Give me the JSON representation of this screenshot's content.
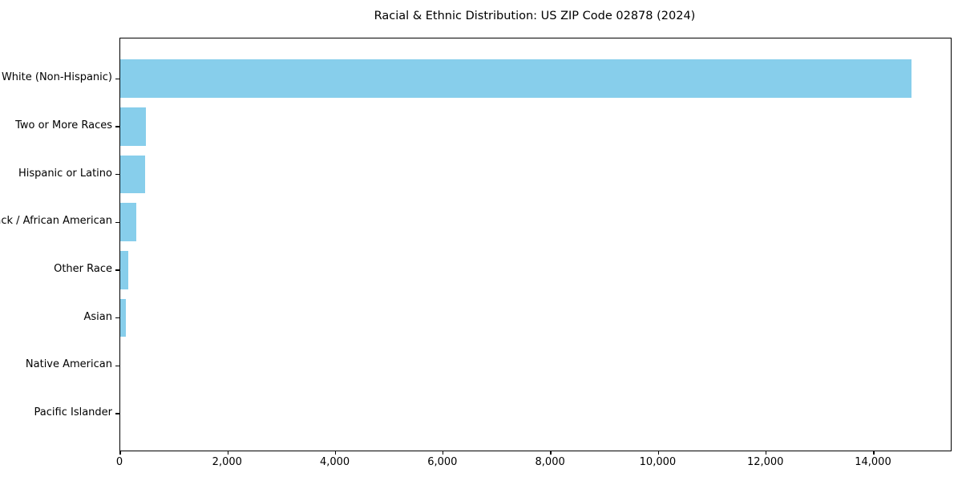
{
  "chart_data": {
    "type": "bar",
    "orientation": "horizontal",
    "title": "Racial & Ethnic Distribution: US ZIP Code 02878 (2024)",
    "categories": [
      "White (Non-Hispanic)",
      "Two or More Races",
      "Hispanic or Latino",
      "Black / African American",
      "Other Race",
      "Asian",
      "Native American",
      "Pacific Islander"
    ],
    "values": [
      14700,
      475,
      465,
      305,
      145,
      100,
      0,
      0
    ],
    "xlabel": "",
    "ylabel": "",
    "xlim": [
      0,
      15430
    ],
    "x_ticks": [
      0,
      2000,
      4000,
      6000,
      8000,
      10000,
      12000,
      14000
    ],
    "x_tick_labels": [
      "0",
      "2,000",
      "4,000",
      "6,000",
      "8,000",
      "10,000",
      "12,000",
      "14,000"
    ],
    "bar_color": "#87CEEB",
    "background_color": "#ffffff",
    "frame_color": "#000000",
    "grid": false,
    "legend": null
  }
}
